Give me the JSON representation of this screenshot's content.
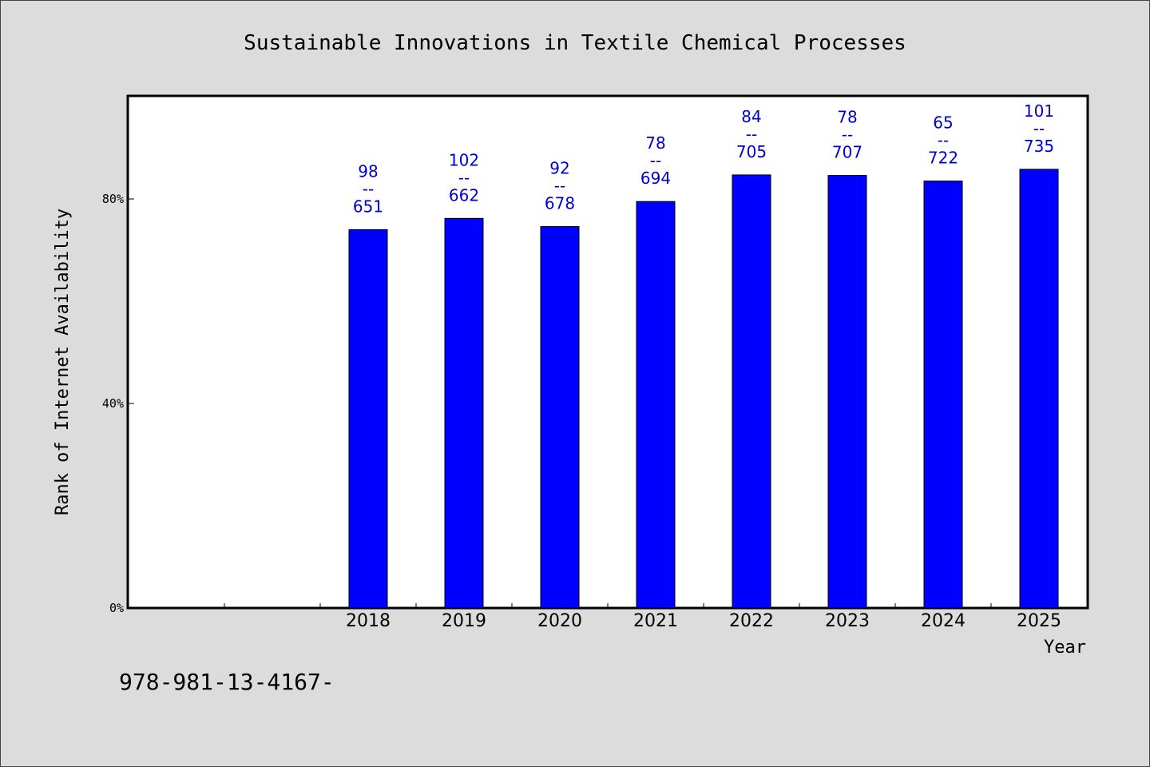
{
  "chart_data": {
    "type": "bar",
    "title": "Sustainable Innovations in Textile Chemical Processes",
    "xlabel": "Year",
    "ylabel": "Rank of Internet Availability",
    "categories": [
      "",
      "",
      "2018",
      "2019",
      "2020",
      "2021",
      "2022",
      "2023",
      "2024",
      "2025"
    ],
    "values": [
      null,
      null,
      74,
      76.2,
      74.6,
      79.5,
      84.7,
      84.6,
      83.5,
      85.8
    ],
    "bar_labels": [
      null,
      null,
      [
        "98",
        "--",
        "651"
      ],
      [
        "102",
        "--",
        "662"
      ],
      [
        "92",
        "--",
        "678"
      ],
      [
        "78",
        "--",
        "694"
      ],
      [
        "84",
        "--",
        "705"
      ],
      [
        "78",
        "--",
        "707"
      ],
      [
        "65",
        "--",
        "722"
      ],
      [
        "101",
        "--",
        "735"
      ]
    ],
    "yticks": [
      0,
      40,
      80
    ],
    "ytick_labels": [
      "0%",
      "40%",
      "80%"
    ],
    "ylim": [
      0,
      100
    ],
    "grid": false,
    "legend": "none",
    "colors": {
      "bar": "#0000ff",
      "bar_edge": "#000000",
      "data_label": "#0000cc",
      "plot_background": "#ffffff",
      "page_background": "#dcdcdc"
    }
  },
  "footnote": "978-981-13-4167-"
}
